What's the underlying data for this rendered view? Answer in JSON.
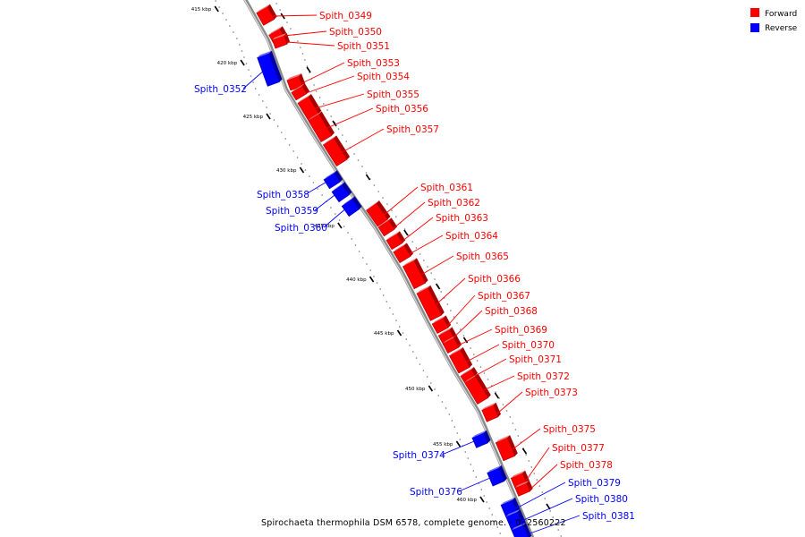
{
  "caption": "Spirochaeta thermophila DSM 6578, complete genome. - 0..2560222",
  "legend": [
    {
      "label": "Forward",
      "color": "#ff0000"
    },
    {
      "label": "Reverse",
      "color": "#0000ff"
    }
  ],
  "colors": {
    "forward": "#ff0000",
    "reverse": "#0000ff",
    "backbone": "#8a8a8a"
  },
  "ticks": [
    "415 kbp",
    "420 kbp",
    "425 kbp",
    "430 kbp",
    "435 kbp",
    "440 kbp",
    "445 kbp",
    "450 kbp",
    "455 kbp",
    "460 kbp"
  ],
  "genes": [
    {
      "name": "Spith_0349",
      "strand": "forward"
    },
    {
      "name": "Spith_0350",
      "strand": "forward"
    },
    {
      "name": "Spith_0351",
      "strand": "forward"
    },
    {
      "name": "Spith_0352",
      "strand": "reverse"
    },
    {
      "name": "Spith_0353",
      "strand": "forward"
    },
    {
      "name": "Spith_0354",
      "strand": "forward"
    },
    {
      "name": "Spith_0355",
      "strand": "forward"
    },
    {
      "name": "Spith_0356",
      "strand": "forward"
    },
    {
      "name": "Spith_0357",
      "strand": "forward"
    },
    {
      "name": "Spith_0358",
      "strand": "reverse"
    },
    {
      "name": "Spith_0359",
      "strand": "reverse"
    },
    {
      "name": "Spith_0360",
      "strand": "reverse"
    },
    {
      "name": "Spith_0361",
      "strand": "forward"
    },
    {
      "name": "Spith_0362",
      "strand": "forward"
    },
    {
      "name": "Spith_0363",
      "strand": "forward"
    },
    {
      "name": "Spith_0364",
      "strand": "forward"
    },
    {
      "name": "Spith_0365",
      "strand": "forward"
    },
    {
      "name": "Spith_0366",
      "strand": "forward"
    },
    {
      "name": "Spith_0367",
      "strand": "forward"
    },
    {
      "name": "Spith_0368",
      "strand": "forward"
    },
    {
      "name": "Spith_0369",
      "strand": "forward"
    },
    {
      "name": "Spith_0370",
      "strand": "forward"
    },
    {
      "name": "Spith_0371",
      "strand": "forward"
    },
    {
      "name": "Spith_0372",
      "strand": "forward"
    },
    {
      "name": "Spith_0373",
      "strand": "forward"
    },
    {
      "name": "Spith_0374",
      "strand": "reverse"
    },
    {
      "name": "Spith_0375",
      "strand": "forward"
    },
    {
      "name": "Spith_0376",
      "strand": "reverse"
    },
    {
      "name": "Spith_0377",
      "strand": "forward"
    },
    {
      "name": "Spith_0378",
      "strand": "forward"
    },
    {
      "name": "Spith_0379",
      "strand": "reverse"
    },
    {
      "name": "Spith_0380",
      "strand": "reverse"
    },
    {
      "name": "Spith_0381",
      "strand": "reverse"
    }
  ]
}
